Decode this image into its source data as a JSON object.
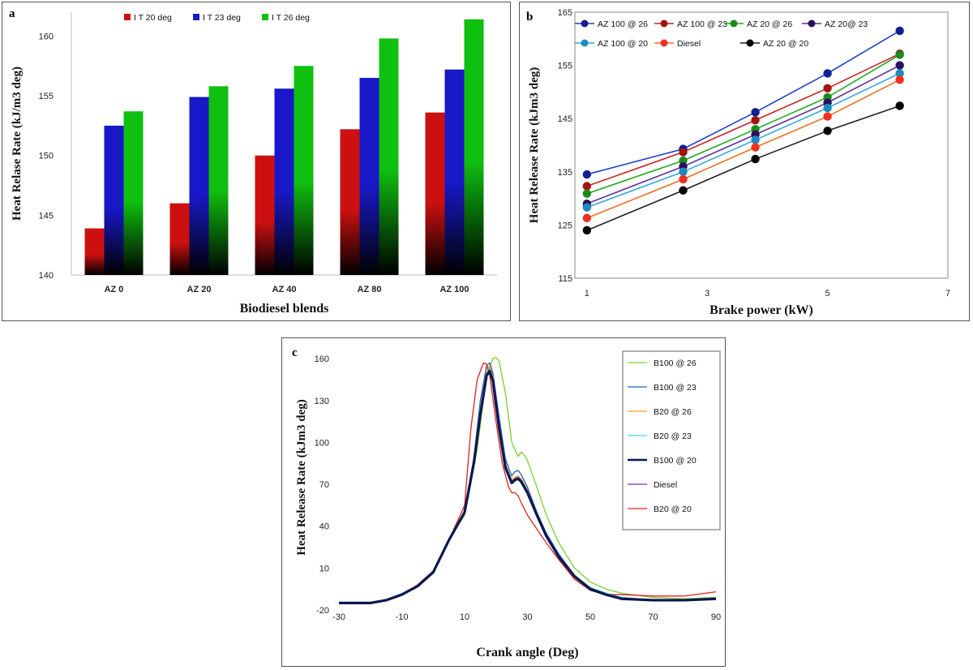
{
  "chart_data": [
    {
      "id": "a",
      "panel_label": "a",
      "type": "bar",
      "categories": [
        "AZ 0",
        "AZ 20",
        "AZ 40",
        "AZ 80",
        "AZ 100"
      ],
      "series": [
        {
          "name": "I T 20 deg",
          "color": "#cc1010",
          "values": [
            143.9,
            146.0,
            150.0,
            152.2,
            153.6
          ]
        },
        {
          "name": "I T 23 deg",
          "color": "#1818c8",
          "values": [
            152.5,
            154.9,
            155.6,
            156.5,
            157.2
          ]
        },
        {
          "name": "I T 26 deg",
          "color": "#10c010",
          "values": [
            153.7,
            155.8,
            157.5,
            159.8,
            161.4
          ]
        }
      ],
      "yticks": [
        "140",
        "145",
        "150",
        "155",
        "160"
      ],
      "ylim": [
        140,
        162
      ],
      "xlabel": "Biodiesel blends",
      "ylabel": "Heat Relase Rate (kJ/m3  deg)",
      "legend_position": "top-center"
    },
    {
      "id": "b",
      "panel_label": "b",
      "type": "line",
      "x": [
        1,
        2.6,
        3.8,
        5,
        6.2
      ],
      "series": [
        {
          "name": "AZ 100 @ 26",
          "color": "#1f3fd0",
          "marker": "#102090",
          "values": [
            134.5,
            139.3,
            146.2,
            153.5,
            161.5
          ]
        },
        {
          "name": "AZ 100 @ 23",
          "color": "#cc2222",
          "marker": "#a01515",
          "values": [
            132.3,
            138.7,
            144.7,
            150.7,
            157.2
          ]
        },
        {
          "name": "AZ 20 @ 26",
          "color": "#22aa22",
          "marker": "#1a8a1a",
          "values": [
            130.9,
            137.1,
            143.0,
            149.0,
            157.0
          ]
        },
        {
          "name": "AZ 20@ 23",
          "color": "#6030a0",
          "marker": "#2a1060",
          "values": [
            129.0,
            136.0,
            142.0,
            148.0,
            155.0
          ]
        },
        {
          "name": "AZ 100 @ 20",
          "color": "#30a8e0",
          "marker": "#1d8ac0",
          "values": [
            128.3,
            135.0,
            141.0,
            147.0,
            153.5
          ]
        },
        {
          "name": "Diesel",
          "color": "#f07020",
          "marker": "#f03020",
          "values": [
            126.3,
            133.6,
            139.6,
            145.4,
            152.3
          ]
        },
        {
          "name": "AZ 20 @ 20",
          "color": "#202020",
          "marker": "#000000",
          "values": [
            124.0,
            131.5,
            137.4,
            142.7,
            147.4
          ]
        }
      ],
      "xticks": [
        "1",
        "3",
        "5",
        "7"
      ],
      "xlim": [
        0.8,
        7
      ],
      "yticks": [
        "115",
        "125",
        "135",
        "145",
        "155",
        "165"
      ],
      "ylim": [
        115,
        165
      ],
      "xlabel": "Brake power (kW)",
      "ylabel": "Heat Release Rate (kJm3  deg)",
      "legend_position": "top"
    },
    {
      "id": "c",
      "panel_label": "c",
      "type": "line",
      "series": [
        {
          "name": "B100 @ 26",
          "color": "#7ad12a",
          "width": 1.3,
          "x": [
            -30,
            -20,
            -15,
            -10,
            -5,
            0,
            5,
            10,
            14,
            17,
            19,
            20,
            21,
            23,
            25,
            27,
            28,
            29,
            30,
            33,
            36,
            40,
            45,
            50,
            55,
            60,
            70,
            80,
            90
          ],
          "y": [
            -15,
            -15,
            -13,
            -9,
            -3,
            7,
            30,
            48,
            95,
            148,
            160,
            161,
            158,
            135,
            100,
            90,
            93,
            91,
            87,
            68,
            48,
            28,
            10,
            0,
            -5,
            -8,
            -11,
            -12,
            -11
          ]
        },
        {
          "name": "B100 @ 23",
          "color": "#2060c0",
          "width": 1.3,
          "x": [
            -30,
            -20,
            -15,
            -10,
            -5,
            0,
            5,
            10,
            13,
            15,
            17,
            18,
            19,
            21,
            23,
            25,
            26,
            27,
            28,
            30,
            33,
            36,
            40,
            45,
            50,
            55,
            60,
            70,
            80,
            90
          ],
          "y": [
            -15,
            -15,
            -13,
            -9,
            -3,
            7,
            30,
            50,
            90,
            130,
            155,
            157,
            150,
            118,
            88,
            76,
            79,
            80,
            77,
            68,
            50,
            35,
            20,
            5,
            -4,
            -8,
            -11,
            -13,
            -13,
            -12
          ]
        },
        {
          "name": "B20 @ 26",
          "color": "#f0a020",
          "width": 1.3,
          "x": [
            -30,
            -20,
            -15,
            -10,
            -5,
            0,
            5,
            10,
            13,
            15,
            17,
            18,
            19,
            21,
            23,
            25,
            26,
            27,
            28,
            30,
            33,
            36,
            40,
            45,
            50,
            55,
            60,
            70,
            80,
            90
          ],
          "y": [
            -15,
            -15,
            -13,
            -9,
            -3,
            7,
            30,
            50,
            88,
            125,
            152,
            155,
            147,
            114,
            85,
            73,
            75,
            76,
            74,
            66,
            49,
            34,
            19,
            5,
            -4,
            -8,
            -11,
            -13,
            -13,
            -12
          ]
        },
        {
          "name": "B20 @ 23",
          "color": "#30e0f0",
          "width": 1.3,
          "x": [
            -30,
            -20,
            -15,
            -10,
            -5,
            0,
            5,
            10,
            13,
            15,
            17,
            18,
            19,
            21,
            23,
            25,
            26,
            27,
            28,
            30,
            33,
            36,
            40,
            45,
            50,
            55,
            60,
            70,
            80,
            90
          ],
          "y": [
            -15,
            -15,
            -13,
            -9,
            -3,
            7,
            30,
            50,
            87,
            123,
            150,
            153,
            146,
            112,
            84,
            72,
            74,
            75,
            73,
            65,
            48,
            34,
            19,
            5,
            -4,
            -8,
            -11,
            -13,
            -13,
            -12
          ]
        },
        {
          "name": "B100 @ 20",
          "color": "#0a1850",
          "width": 3.2,
          "x": [
            -30,
            -20,
            -15,
            -10,
            -5,
            0,
            5,
            10,
            13,
            15,
            17,
            18,
            19,
            21,
            23,
            25,
            26,
            27,
            28,
            30,
            33,
            36,
            40,
            45,
            50,
            55,
            60,
            70,
            80,
            90
          ],
          "y": [
            -15,
            -15,
            -13,
            -9,
            -3,
            7,
            30,
            50,
            86,
            120,
            148,
            151,
            144,
            110,
            82,
            71,
            73,
            74,
            72,
            64,
            48,
            33,
            18,
            4,
            -5,
            -9,
            -12,
            -13,
            -13,
            -12
          ]
        },
        {
          "name": "Diesel",
          "color": "#7030b0",
          "width": 1.3,
          "x": [
            -30,
            -20,
            -15,
            -10,
            -5,
            0,
            5,
            10,
            13,
            15,
            17,
            18,
            19,
            21,
            23,
            25,
            26,
            27,
            28,
            30,
            33,
            36,
            40,
            45,
            50,
            55,
            60,
            70,
            80,
            90
          ],
          "y": [
            -15,
            -15,
            -13,
            -9,
            -3,
            7,
            30,
            50,
            86,
            121,
            149,
            152,
            145,
            111,
            83,
            72,
            74,
            75,
            73,
            65,
            48,
            33,
            18,
            4,
            -5,
            -9,
            -12,
            -13,
            -13,
            -12
          ]
        },
        {
          "name": "B20 @ 20",
          "color": "#e02020",
          "width": 1.3,
          "x": [
            -30,
            -20,
            -15,
            -10,
            -5,
            0,
            5,
            10,
            12,
            14,
            16,
            17,
            18,
            20,
            22,
            24,
            25,
            26,
            27,
            28,
            30,
            33,
            36,
            40,
            45,
            50,
            55,
            60,
            70,
            80,
            90
          ],
          "y": [
            -15,
            -15,
            -13,
            -9,
            -2,
            8,
            30,
            55,
            110,
            145,
            157,
            156,
            148,
            115,
            85,
            68,
            64,
            64,
            62,
            57,
            48,
            38,
            28,
            16,
            2,
            -6,
            -9,
            -9,
            -10,
            -10,
            -7
          ]
        }
      ],
      "xticks": [
        "-30",
        "-10",
        "10",
        "30",
        "50",
        "70",
        "90"
      ],
      "xlim": [
        -30,
        90
      ],
      "yticks": [
        "-20",
        "10",
        "40",
        "70",
        "100",
        "130",
        "160"
      ],
      "ylim": [
        -20,
        170
      ],
      "xlabel": "Crank angle (Deg)",
      "ylabel": "Heat Release Rate (kJm3  deg)",
      "legend_position": "right"
    }
  ]
}
